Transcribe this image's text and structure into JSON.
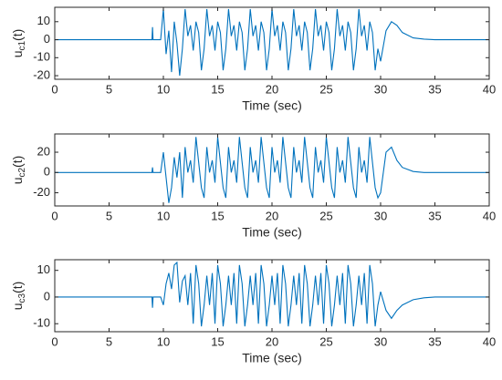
{
  "chart_data": [
    {
      "type": "line",
      "xlabel": "Time (sec)",
      "ylabel": {
        "base": "u",
        "sub": "c1",
        "tail": "(t)"
      },
      "xlim": [
        0,
        40
      ],
      "xticks": [
        0,
        5,
        10,
        15,
        20,
        25,
        30,
        35,
        40
      ],
      "ylim": [
        -22,
        18
      ],
      "yticks": [
        -20,
        -10,
        0,
        10
      ],
      "series": [
        {
          "color": "#0072bd",
          "x": [
            0,
            8.95,
            9,
            9.05,
            9.75,
            10,
            10.25,
            10.5,
            10.75,
            11,
            11.25,
            11.5,
            11.75,
            12,
            12.25,
            12.5,
            12.75,
            13,
            13.25,
            13.5,
            13.75,
            14,
            14.25,
            14.5,
            14.75,
            15,
            15.25,
            15.5,
            15.75,
            16,
            16.25,
            16.5,
            16.75,
            17,
            17.25,
            17.5,
            17.75,
            18,
            18.25,
            18.5,
            18.75,
            19,
            19.25,
            19.5,
            19.75,
            20,
            20.25,
            20.5,
            20.75,
            21,
            21.25,
            21.5,
            21.75,
            22,
            22.25,
            22.5,
            22.75,
            23,
            23.25,
            23.5,
            23.75,
            24,
            24.25,
            24.5,
            24.75,
            25,
            25.25,
            25.5,
            25.75,
            26,
            26.25,
            26.5,
            26.75,
            27,
            27.25,
            27.5,
            27.75,
            28,
            28.25,
            28.5,
            28.75,
            29,
            29.25,
            29.5,
            29.75,
            30,
            30.5,
            31,
            31.5,
            32,
            33,
            34,
            35,
            40
          ],
          "values": [
            0,
            0,
            7,
            0,
            0,
            17,
            -8,
            5,
            -18,
            10,
            -2,
            -20,
            -5,
            17,
            2,
            8,
            -6,
            10,
            4,
            -17,
            -5,
            17,
            2,
            8,
            -6,
            10,
            4,
            -17,
            -5,
            17,
            2,
            8,
            -6,
            10,
            4,
            -17,
            -5,
            17,
            2,
            8,
            -6,
            10,
            4,
            -17,
            -5,
            17,
            2,
            8,
            -6,
            10,
            4,
            -17,
            -5,
            17,
            2,
            8,
            -6,
            10,
            4,
            -17,
            -5,
            17,
            2,
            8,
            -6,
            10,
            4,
            -17,
            -5,
            17,
            2,
            8,
            -6,
            10,
            4,
            -17,
            -5,
            17,
            2,
            8,
            -6,
            10,
            4,
            -17,
            -5,
            -12,
            5,
            10,
            8,
            4,
            1,
            0.3,
            0,
            0
          ]
        }
      ]
    },
    {
      "type": "line",
      "xlabel": "Time (sec)",
      "ylabel": {
        "base": "u",
        "sub": "c2",
        "tail": "(t)"
      },
      "xlim": [
        0,
        40
      ],
      "xticks": [
        0,
        5,
        10,
        15,
        20,
        25,
        30,
        35,
        40
      ],
      "ylim": [
        -33,
        38
      ],
      "yticks": [
        -20,
        0,
        20
      ],
      "series": [
        {
          "color": "#0072bd",
          "x": [
            0,
            8.95,
            9,
            9.05,
            9.75,
            10,
            10.25,
            10.5,
            10.75,
            11,
            11.25,
            11.5,
            11.75,
            12,
            12.25,
            12.5,
            12.75,
            13,
            13.25,
            13.5,
            13.75,
            14,
            14.25,
            14.5,
            14.75,
            15,
            15.25,
            15.5,
            15.75,
            16,
            16.25,
            16.5,
            16.75,
            17,
            17.25,
            17.5,
            17.75,
            18,
            18.25,
            18.5,
            18.75,
            19,
            19.25,
            19.5,
            19.75,
            20,
            20.25,
            20.5,
            20.75,
            21,
            21.25,
            21.5,
            21.75,
            22,
            22.25,
            22.5,
            22.75,
            23,
            23.25,
            23.5,
            23.75,
            24,
            24.25,
            24.5,
            24.75,
            25,
            25.25,
            25.5,
            25.75,
            26,
            26.25,
            26.5,
            26.75,
            27,
            27.25,
            27.5,
            27.75,
            28,
            28.25,
            28.5,
            28.75,
            29,
            29.25,
            29.5,
            29.75,
            30,
            30.5,
            31,
            31.5,
            32,
            33,
            34,
            35,
            40
          ],
          "values": [
            0,
            0,
            5,
            0,
            0,
            20,
            -5,
            -30,
            -15,
            15,
            -5,
            20,
            -25,
            25,
            0,
            12,
            -10,
            35,
            10,
            -15,
            -25,
            25,
            0,
            12,
            -10,
            35,
            10,
            -15,
            -25,
            25,
            0,
            12,
            -10,
            35,
            10,
            -15,
            -25,
            25,
            0,
            12,
            -10,
            35,
            10,
            -15,
            -25,
            25,
            0,
            12,
            -10,
            35,
            10,
            -15,
            -25,
            25,
            0,
            12,
            -10,
            35,
            10,
            -15,
            -25,
            25,
            0,
            12,
            -10,
            35,
            10,
            -15,
            -25,
            25,
            0,
            12,
            -10,
            35,
            10,
            -15,
            -25,
            25,
            0,
            12,
            -10,
            35,
            10,
            -15,
            -25,
            -20,
            20,
            25,
            12,
            5,
            1,
            0,
            0,
            0
          ]
        }
      ]
    },
    {
      "type": "line",
      "xlabel": "Time (sec)",
      "ylabel": {
        "base": "u",
        "sub": "c3",
        "tail": "(t)"
      },
      "xlim": [
        0,
        40
      ],
      "xticks": [
        0,
        5,
        10,
        15,
        20,
        25,
        30,
        35,
        40
      ],
      "ylim": [
        -13,
        14
      ],
      "yticks": [
        -10,
        0,
        10
      ],
      "series": [
        {
          "color": "#0072bd",
          "x": [
            0,
            8.95,
            9,
            9.05,
            9.75,
            10,
            10.25,
            10.5,
            10.75,
            11,
            11.25,
            11.5,
            11.75,
            12,
            12.25,
            12.5,
            12.75,
            13,
            13.25,
            13.5,
            13.75,
            14,
            14.25,
            14.5,
            14.75,
            15,
            15.25,
            15.5,
            15.75,
            16,
            16.25,
            16.5,
            16.75,
            17,
            17.25,
            17.5,
            17.75,
            18,
            18.25,
            18.5,
            18.75,
            19,
            19.25,
            19.5,
            19.75,
            20,
            20.25,
            20.5,
            20.75,
            21,
            21.25,
            21.5,
            21.75,
            22,
            22.25,
            22.5,
            22.75,
            23,
            23.25,
            23.5,
            23.75,
            24,
            24.25,
            24.5,
            24.75,
            25,
            25.25,
            25.5,
            25.75,
            26,
            26.25,
            26.5,
            26.75,
            27,
            27.25,
            27.5,
            27.75,
            28,
            28.25,
            28.5,
            28.75,
            29,
            29.25,
            29.5,
            29.75,
            30,
            30.5,
            31,
            31.5,
            32,
            33,
            34,
            35,
            40
          ],
          "values": [
            0,
            0,
            -4,
            0,
            0,
            -3,
            5,
            9,
            3,
            12,
            13,
            -2,
            6,
            8,
            -3,
            9,
            -10,
            12,
            5,
            -11,
            -3,
            8,
            -3,
            9,
            -10,
            12,
            5,
            -11,
            -3,
            8,
            -3,
            9,
            -10,
            12,
            5,
            -11,
            -3,
            8,
            -3,
            9,
            -10,
            12,
            5,
            -11,
            -3,
            8,
            -3,
            9,
            -10,
            12,
            5,
            -11,
            -3,
            8,
            -3,
            9,
            -10,
            12,
            5,
            -11,
            -3,
            8,
            -3,
            9,
            -10,
            12,
            5,
            -11,
            -3,
            8,
            -3,
            9,
            -10,
            12,
            5,
            -11,
            -3,
            8,
            -3,
            9,
            -10,
            12,
            5,
            -11,
            -3,
            2,
            -5,
            -8,
            -5,
            -3,
            -1,
            -0.3,
            0,
            0
          ]
        }
      ]
    }
  ]
}
